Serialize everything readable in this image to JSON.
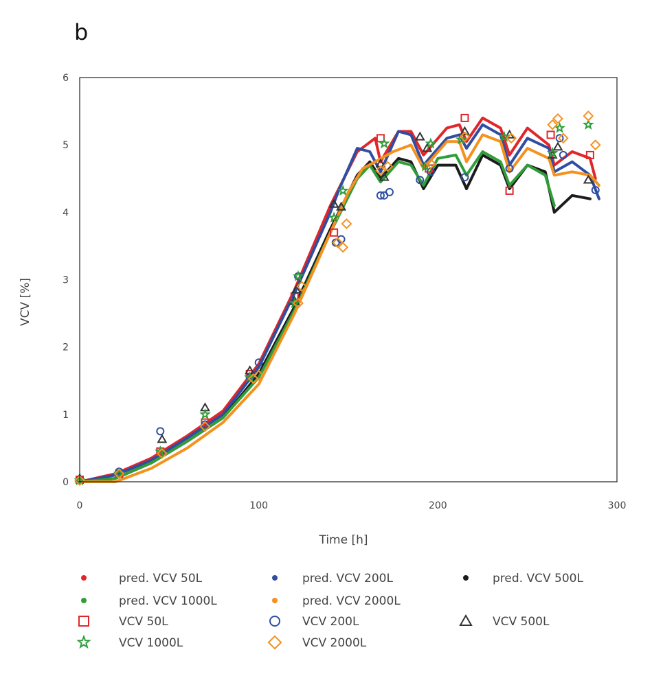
{
  "panel_label": "b",
  "chart_data": {
    "type": "scatter",
    "title": "",
    "xlabel": "Time [h]",
    "ylabel": "VCV [%]",
    "xlim": [
      0,
      300
    ],
    "ylim": [
      0,
      6
    ],
    "xticks": [
      0,
      100,
      200,
      300
    ],
    "yticks": [
      0,
      1,
      2,
      3,
      4,
      5,
      6
    ],
    "grid": false,
    "legend_position": "bottom",
    "lines": [
      {
        "name": "pred. VCV 50L",
        "color": "#e0262b",
        "points": [
          [
            0,
            0
          ],
          [
            20,
            0.12
          ],
          [
            40,
            0.35
          ],
          [
            60,
            0.68
          ],
          [
            80,
            1.05
          ],
          [
            100,
            1.75
          ],
          [
            120,
            2.85
          ],
          [
            140,
            4.1
          ],
          [
            155,
            4.9
          ],
          [
            160,
            5.0
          ],
          [
            165,
            5.1
          ],
          [
            168,
            4.75
          ],
          [
            178,
            5.2
          ],
          [
            185,
            5.2
          ],
          [
            192,
            4.85
          ],
          [
            205,
            5.25
          ],
          [
            212,
            5.3
          ],
          [
            216,
            5.05
          ],
          [
            225,
            5.4
          ],
          [
            235,
            5.25
          ],
          [
            240,
            4.85
          ],
          [
            250,
            5.25
          ],
          [
            262,
            5.0
          ],
          [
            265,
            4.7
          ],
          [
            275,
            4.9
          ],
          [
            285,
            4.8
          ],
          [
            288,
            4.5
          ]
        ]
      },
      {
        "name": "pred. VCV 200L",
        "color": "#2f4ea2",
        "points": [
          [
            0,
            0
          ],
          [
            20,
            0.1
          ],
          [
            40,
            0.32
          ],
          [
            60,
            0.65
          ],
          [
            80,
            1.0
          ],
          [
            100,
            1.7
          ],
          [
            120,
            2.8
          ],
          [
            140,
            4.0
          ],
          [
            145,
            4.35
          ],
          [
            155,
            4.95
          ],
          [
            162,
            4.9
          ],
          [
            168,
            4.6
          ],
          [
            178,
            5.2
          ],
          [
            185,
            5.15
          ],
          [
            192,
            4.7
          ],
          [
            205,
            5.1
          ],
          [
            212,
            5.15
          ],
          [
            216,
            4.95
          ],
          [
            225,
            5.3
          ],
          [
            235,
            5.15
          ],
          [
            240,
            4.7
          ],
          [
            250,
            5.1
          ],
          [
            262,
            4.95
          ],
          [
            265,
            4.6
          ],
          [
            275,
            4.75
          ],
          [
            285,
            4.55
          ],
          [
            290,
            4.2
          ]
        ]
      },
      {
        "name": "pred. VCV 500L",
        "color": "#1c1c1c",
        "points": [
          [
            0,
            0
          ],
          [
            20,
            0.05
          ],
          [
            40,
            0.28
          ],
          [
            60,
            0.6
          ],
          [
            80,
            0.95
          ],
          [
            100,
            1.6
          ],
          [
            120,
            2.6
          ],
          [
            140,
            3.75
          ],
          [
            155,
            4.55
          ],
          [
            162,
            4.75
          ],
          [
            168,
            4.5
          ],
          [
            178,
            4.8
          ],
          [
            185,
            4.75
          ],
          [
            192,
            4.35
          ],
          [
            200,
            4.7
          ],
          [
            210,
            4.7
          ],
          [
            216,
            4.35
          ],
          [
            225,
            4.85
          ],
          [
            235,
            4.7
          ],
          [
            240,
            4.35
          ],
          [
            250,
            4.7
          ],
          [
            260,
            4.6
          ],
          [
            265,
            4.0
          ],
          [
            275,
            4.25
          ],
          [
            285,
            4.2
          ]
        ]
      },
      {
        "name": "pred. VCV 1000L",
        "color": "#2f9e3a",
        "points": [
          [
            0,
            0
          ],
          [
            20,
            0.05
          ],
          [
            40,
            0.28
          ],
          [
            60,
            0.6
          ],
          [
            80,
            0.95
          ],
          [
            100,
            1.55
          ],
          [
            120,
            2.55
          ],
          [
            140,
            3.7
          ],
          [
            155,
            4.5
          ],
          [
            162,
            4.7
          ],
          [
            168,
            4.45
          ],
          [
            178,
            4.75
          ],
          [
            185,
            4.7
          ],
          [
            192,
            4.4
          ],
          [
            200,
            4.8
          ],
          [
            210,
            4.85
          ],
          [
            216,
            4.55
          ],
          [
            225,
            4.9
          ],
          [
            235,
            4.75
          ],
          [
            240,
            4.4
          ],
          [
            250,
            4.7
          ],
          [
            260,
            4.55
          ],
          [
            265,
            4.1
          ]
        ]
      },
      {
        "name": "pred. VCV 2000L",
        "color": "#f4911f",
        "points": [
          [
            0,
            0
          ],
          [
            20,
            0.0
          ],
          [
            40,
            0.2
          ],
          [
            60,
            0.5
          ],
          [
            80,
            0.88
          ],
          [
            100,
            1.45
          ],
          [
            120,
            2.5
          ],
          [
            140,
            3.7
          ],
          [
            150,
            4.3
          ],
          [
            158,
            4.65
          ],
          [
            165,
            4.75
          ],
          [
            175,
            4.9
          ],
          [
            185,
            5.0
          ],
          [
            192,
            4.65
          ],
          [
            205,
            5.05
          ],
          [
            212,
            5.05
          ],
          [
            216,
            4.75
          ],
          [
            225,
            5.15
          ],
          [
            235,
            5.05
          ],
          [
            240,
            4.6
          ],
          [
            250,
            4.95
          ],
          [
            262,
            4.8
          ],
          [
            265,
            4.55
          ],
          [
            275,
            4.6
          ],
          [
            285,
            4.55
          ],
          [
            290,
            4.4
          ]
        ]
      }
    ],
    "markers": [
      {
        "name": "VCV 50L",
        "color": "#e0262b",
        "shape": "square",
        "points": [
          [
            0,
            0.03
          ],
          [
            22,
            0.12
          ],
          [
            45,
            0.45
          ],
          [
            70,
            0.88
          ],
          [
            95,
            1.6
          ],
          [
            120,
            2.75
          ],
          [
            142,
            3.7
          ],
          [
            168,
            5.1
          ],
          [
            195,
            4.65
          ],
          [
            215,
            5.4
          ],
          [
            240,
            4.32
          ],
          [
            263,
            5.15
          ],
          [
            285,
            4.85
          ]
        ]
      },
      {
        "name": "VCV 200L",
        "color": "#2f4ea2",
        "shape": "circle",
        "points": [
          [
            0,
            0.03
          ],
          [
            22,
            0.15
          ],
          [
            45,
            0.75
          ],
          [
            70,
            0.85
          ],
          [
            95,
            1.55
          ],
          [
            100,
            1.77
          ],
          [
            122,
            3.05
          ],
          [
            143,
            3.55
          ],
          [
            146,
            3.6
          ],
          [
            168,
            4.25
          ],
          [
            170,
            4.25
          ],
          [
            173,
            4.3
          ],
          [
            190,
            4.48
          ],
          [
            196,
            4.6
          ],
          [
            215,
            4.52
          ],
          [
            240,
            4.65
          ],
          [
            268,
            5.1
          ],
          [
            270,
            4.85
          ],
          [
            288,
            4.33
          ]
        ]
      },
      {
        "name": "VCV 500L",
        "color": "#333333",
        "shape": "triangle",
        "points": [
          [
            0,
            0.05
          ],
          [
            46,
            0.63
          ],
          [
            70,
            1.1
          ],
          [
            95,
            1.65
          ],
          [
            120,
            2.68
          ],
          [
            121,
            2.85
          ],
          [
            142,
            4.12
          ],
          [
            146,
            4.08
          ],
          [
            168,
            4.72
          ],
          [
            170,
            4.52
          ],
          [
            190,
            5.12
          ],
          [
            194,
            4.95
          ],
          [
            215,
            5.2
          ],
          [
            240,
            5.15
          ],
          [
            264,
            4.85
          ],
          [
            267,
            4.97
          ],
          [
            284,
            4.48
          ]
        ]
      },
      {
        "name": "VCV 1000L",
        "color": "#2f9e3a",
        "shape": "star",
        "points": [
          [
            0,
            0.02
          ],
          [
            22,
            0.12
          ],
          [
            45,
            0.45
          ],
          [
            70,
            1.0
          ],
          [
            95,
            1.55
          ],
          [
            120,
            2.65
          ],
          [
            122,
            3.05
          ],
          [
            142,
            3.92
          ],
          [
            147,
            4.32
          ],
          [
            170,
            5.02
          ],
          [
            193,
            4.68
          ],
          [
            196,
            5.02
          ],
          [
            213,
            5.08
          ],
          [
            237,
            5.12
          ],
          [
            264,
            4.88
          ],
          [
            268,
            5.25
          ],
          [
            284,
            5.3
          ]
        ]
      },
      {
        "name": "VCV 2000L",
        "color": "#f4911f",
        "shape": "diamond",
        "points": [
          [
            0,
            0.02
          ],
          [
            22,
            0.12
          ],
          [
            46,
            0.42
          ],
          [
            70,
            0.82
          ],
          [
            97,
            1.53
          ],
          [
            100,
            1.58
          ],
          [
            122,
            2.65
          ],
          [
            124,
            2.9
          ],
          [
            144,
            3.55
          ],
          [
            147,
            3.48
          ],
          [
            149,
            3.83
          ],
          [
            168,
            4.62
          ],
          [
            172,
            4.68
          ],
          [
            196,
            4.72
          ],
          [
            215,
            5.12
          ],
          [
            241,
            5.1
          ],
          [
            264,
            5.3
          ],
          [
            267,
            5.39
          ],
          [
            270,
            5.1
          ],
          [
            284,
            5.43
          ],
          [
            288,
            5.0
          ]
        ]
      }
    ]
  }
}
